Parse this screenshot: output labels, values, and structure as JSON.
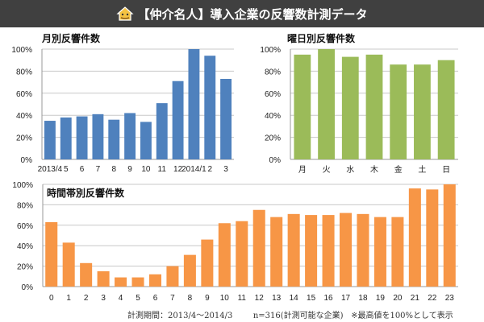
{
  "header": {
    "title": "【仲介名人】導入企業の反響数計測データ",
    "icon": "house-mascot-icon"
  },
  "colors": {
    "monthly": "#4f81bd",
    "weekday": "#9bbb59",
    "hourly": "#f79646",
    "header_bg": "#404040"
  },
  "chart_data": [
    {
      "type": "bar",
      "title": "月別反響件数",
      "categories": [
        "2013/4",
        "5",
        "6",
        "7",
        "8",
        "9",
        "10",
        "11",
        "12",
        "2014/1",
        "2",
        "3"
      ],
      "values": [
        35,
        38,
        39,
        41,
        36,
        42,
        34,
        51,
        71,
        100,
        94,
        73
      ],
      "yticks": [
        "0%",
        "20%",
        "40%",
        "60%",
        "80%",
        "100%"
      ],
      "ylim": [
        0,
        100
      ],
      "grid": true
    },
    {
      "type": "bar",
      "title": "曜日別反響件数",
      "categories": [
        "月",
        "火",
        "水",
        "木",
        "金",
        "土",
        "日"
      ],
      "values": [
        95,
        100,
        93,
        95,
        86,
        86,
        90
      ],
      "yticks": [
        "0%",
        "20%",
        "40%",
        "60%",
        "80%",
        "100%"
      ],
      "ylim": [
        0,
        100
      ],
      "grid": true
    },
    {
      "type": "bar",
      "title": "時間帯別反響件数",
      "categories": [
        "0",
        "1",
        "2",
        "3",
        "4",
        "5",
        "6",
        "7",
        "8",
        "9",
        "10",
        "11",
        "12",
        "13",
        "14",
        "15",
        "16",
        "17",
        "18",
        "19",
        "20",
        "21",
        "22",
        "23"
      ],
      "values": [
        63,
        43,
        23,
        15,
        9,
        9,
        12,
        20,
        31,
        46,
        62,
        64,
        75,
        68,
        71,
        70,
        70,
        72,
        71,
        68,
        68,
        96,
        95,
        100
      ],
      "yticks": [
        "0%",
        "20%",
        "40%",
        "60%",
        "80%",
        "100%"
      ],
      "ylim": [
        0,
        100
      ],
      "grid": true
    }
  ],
  "footer": {
    "period": "計測期間：2013/4～2014/3",
    "sample": "n=316(計測可能な企業)",
    "note": "※最高値を100%として表示"
  }
}
